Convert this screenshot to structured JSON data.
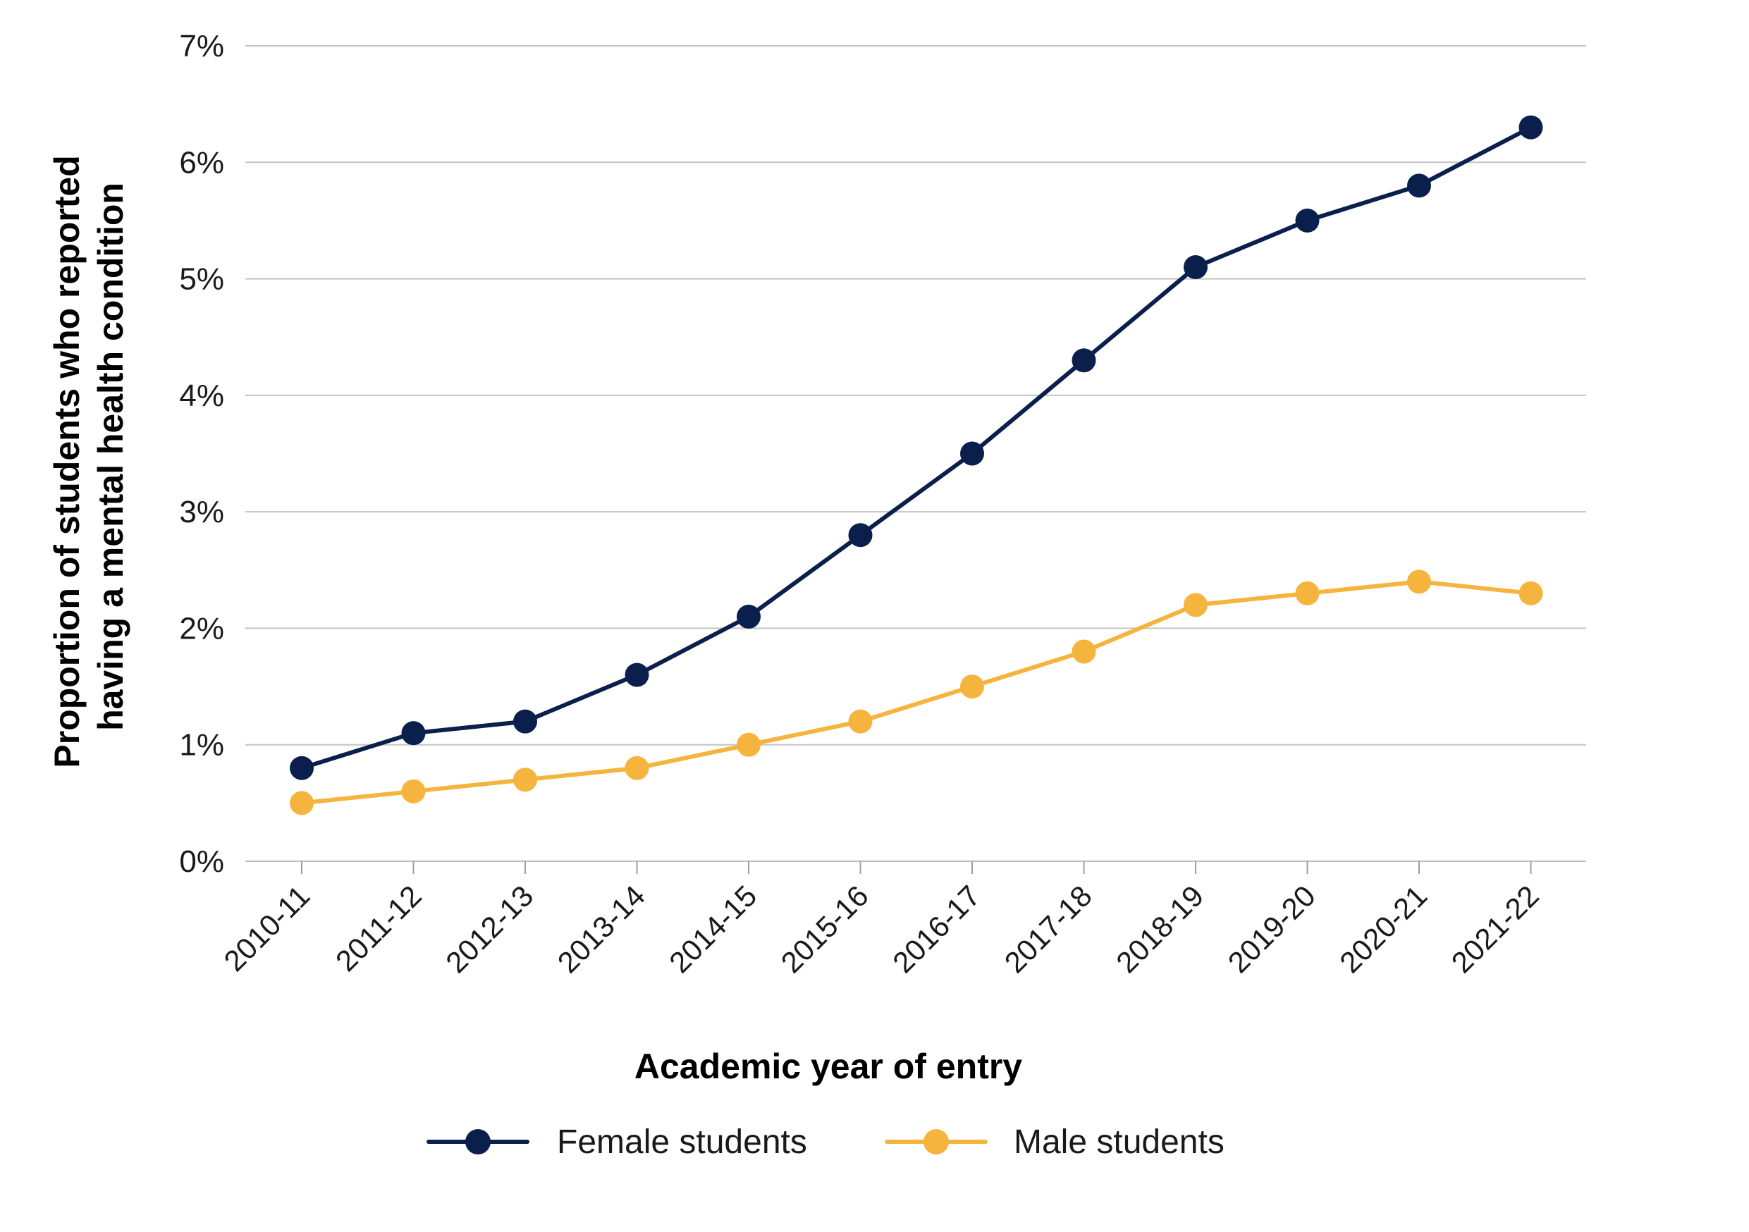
{
  "chart_data": {
    "type": "line",
    "title": "",
    "xlabel": "Academic year of entry",
    "ylabel_lines": [
      "Proportion of students who reported",
      "having a mental health condition"
    ],
    "categories": [
      "2010-11",
      "2011-12",
      "2012-13",
      "2013-14",
      "2014-15",
      "2015-16",
      "2016-17",
      "2017-18",
      "2018-19",
      "2019-20",
      "2020-21",
      "2021-22"
    ],
    "y_ticks": [
      0,
      1,
      2,
      3,
      4,
      5,
      6,
      7
    ],
    "y_tick_labels": [
      "0%",
      "1%",
      "2%",
      "3%",
      "4%",
      "5%",
      "6%",
      "7%"
    ],
    "ylim": [
      0,
      7
    ],
    "grid": true,
    "legend_position": "bottom",
    "series": [
      {
        "name": "Female students",
        "color": "#0b1f4d",
        "values": [
          0.8,
          1.1,
          1.2,
          1.6,
          2.1,
          2.8,
          3.5,
          4.3,
          5.1,
          5.5,
          5.8,
          6.3
        ]
      },
      {
        "name": "Male students",
        "color": "#f5b43d",
        "values": [
          0.5,
          0.6,
          0.7,
          0.8,
          1.0,
          1.2,
          1.5,
          1.8,
          2.2,
          2.3,
          2.4,
          2.3
        ]
      }
    ]
  }
}
